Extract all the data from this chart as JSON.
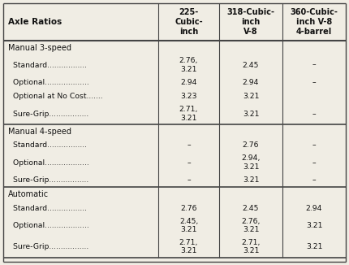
{
  "title": "Axle Ratios",
  "col_headers": [
    "225-\nCubic-\ninch",
    "318-Cubic-\ninch\nV-8",
    "360-Cubic-\ninch V-8\n4-barrel"
  ],
  "sections": [
    {
      "section_title": "Manual 3-speed",
      "rows": [
        {
          "label": "  Standard.................",
          "col1": "2.76,\n3.21",
          "col2": "2.45",
          "col3": "–"
        },
        {
          "label": "  Optional...................",
          "col1": "2.94",
          "col2": "2.94",
          "col3": "–"
        },
        {
          "label": "  Optional at No Cost.......",
          "col1": "3.23",
          "col2": "3.21",
          "col3": ""
        },
        {
          "label": "  Sure-Grip.................",
          "col1": "2.71,\n3.21",
          "col2": "3.21",
          "col3": "–"
        }
      ]
    },
    {
      "section_title": "Manual 4-speed",
      "rows": [
        {
          "label": "  Standard.................",
          "col1": "–",
          "col2": "2.76",
          "col3": "–"
        },
        {
          "label": "  Optional...................",
          "col1": "–",
          "col2": "2.94,\n3.21",
          "col3": "–"
        },
        {
          "label": "  Sure-Grip.................",
          "col1": "–",
          "col2": "3.21",
          "col3": "–"
        }
      ]
    },
    {
      "section_title": "Automatic",
      "rows": [
        {
          "label": "  Standard.................",
          "col1": "2.76",
          "col2": "2.45",
          "col3": "2.94"
        },
        {
          "label": "  Optional...................",
          "col1": "2.45,\n3.21",
          "col2": "2.76,\n3.21",
          "col3": "3.21"
        },
        {
          "label": "  Sure-Grip.................",
          "col1": "2.71,\n3.21",
          "col2": "2.71,\n3.21",
          "col3": "3.21"
        }
      ]
    }
  ],
  "bg_color": "#f0ede4",
  "border_color": "#444444",
  "font_size": 7.0
}
